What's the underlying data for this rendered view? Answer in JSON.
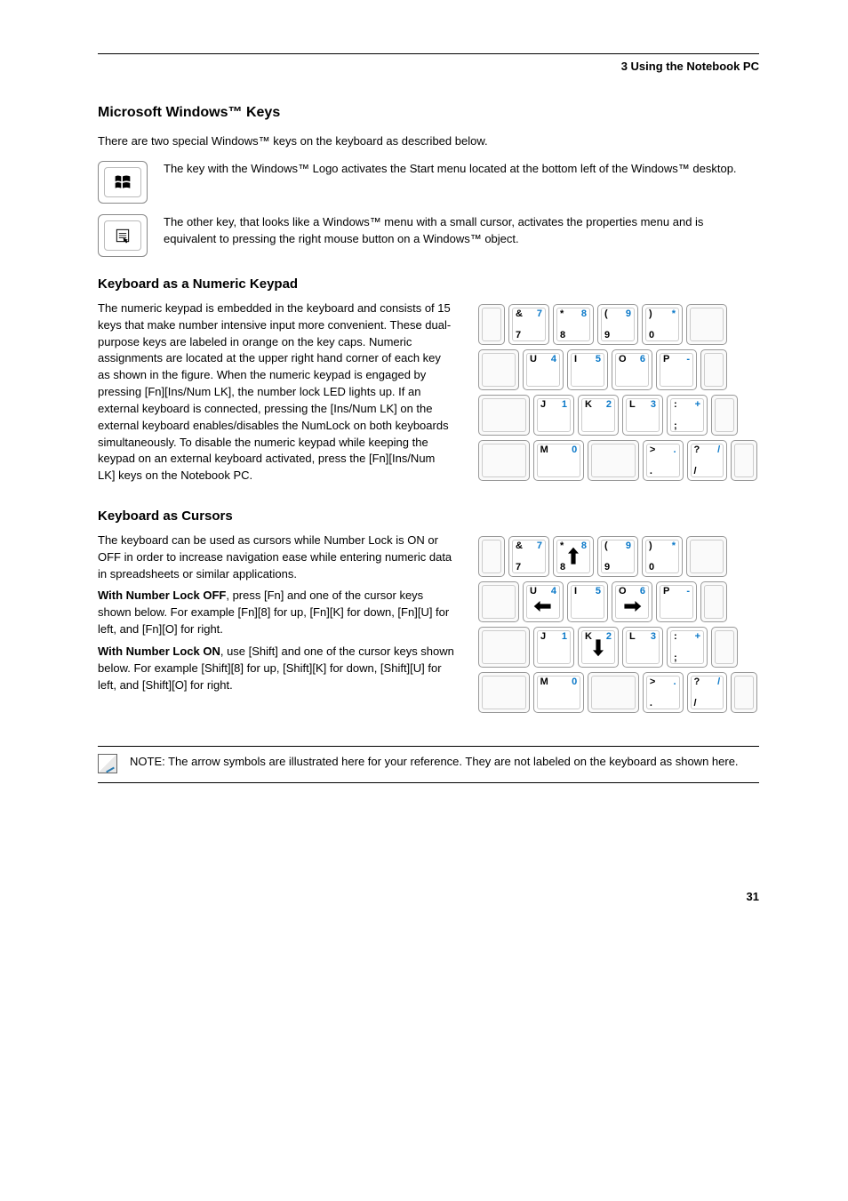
{
  "colors": {
    "accent": "#0a78c8",
    "text": "#000000",
    "rule": "#000000",
    "key_border": "#999999",
    "key_inner": "#cccccc"
  },
  "header": {
    "left": "",
    "right": "3    Using the Notebook PC"
  },
  "sections": {
    "winkeys_title": "Microsoft Windows™ Keys",
    "winkeys_intro": "There are two special Windows™ keys on the keyboard as described below.",
    "winlogo_desc": "The key with the Windows™ Logo activates the Start menu located at the bottom left of the Windows™ desktop.",
    "winmenu_desc": "The other key, that looks like a Windows™ menu with a small cursor, activates the properties menu and is equivalent to pressing the right mouse button on a Windows™ object.",
    "numpad_title": "Keyboard as a Numeric Keypad",
    "numpad_text": "The numeric keypad is embedded in the keyboard and consists of 15 keys that make number intensive input more convenient. These dual-purpose keys are labeled in orange on the key caps. Numeric assignments are located at the upper right hand corner of each key as shown in the figure. When the numeric keypad is engaged by pressing [Fn][Ins/Num LK], the number lock LED lights up. If an external keyboard is connected, pressing the [Ins/Num LK] on the external keyboard enables/disables the NumLock on both keyboards simultaneously. To disable the numeric keypad while keeping the keypad on an external keyboard activated, press the [Fn][Ins/Num LK] keys on the Notebook PC.",
    "cursors_title": "Keyboard as Cursors",
    "cursors_text": "The keyboard can be used as cursors while Number Lock is ON or OFF in order to increase navigation ease while entering numeric data in spreadsheets or similar applications.",
    "cursors_on": "With Number Lock OFF, press [Fn] and one of the cursor keys shown below. For example [Fn][8] for up, [Fn][K] for down, [Fn][U] for left, and [Fn][O] for right.",
    "cursors_off": "With Number Lock ON, use [Shift] and one of the cursor keys shown below. For example [Shift][8] for up, [Shift][K] for down, [Shift][U] for left, and [Shift][O] for right.",
    "note": "NOTE: The arrow symbols are illustrated here for your reference. They are not labeled on the keyboard as shown here."
  },
  "kbd_numpad": {
    "row1": [
      {
        "blank": true,
        "w": "w-off"
      },
      {
        "tl": "&",
        "tr": "7",
        "bl": "7",
        "blue_tr": true
      },
      {
        "tl": "*",
        "tr": "8",
        "bl": "8",
        "blue_tr": true
      },
      {
        "tl": "(",
        "tr": "9",
        "bl": "9",
        "blue_tr": true
      },
      {
        "tl": ")",
        "tr": "*",
        "bl": "0",
        "blue_tr": true
      },
      {
        "blank": true,
        "w": "w-std"
      }
    ],
    "row2": [
      {
        "blank": true,
        "w": "w-std"
      },
      {
        "tl": "U",
        "tr": "4",
        "blue_tr": true
      },
      {
        "tl": "I",
        "tr": "5",
        "blue_tr": true
      },
      {
        "tl": "O",
        "tr": "6",
        "blue_tr": true
      },
      {
        "tl": "P",
        "tr": "-",
        "blue_tr": true
      },
      {
        "blank": true,
        "w": "w-off"
      }
    ],
    "row3": [
      {
        "blank": true,
        "w": "w-wide"
      },
      {
        "tl": "J",
        "tr": "1",
        "blue_tr": true
      },
      {
        "tl": "K",
        "tr": "2",
        "blue_tr": true
      },
      {
        "tl": "L",
        "tr": "3",
        "blue_tr": true
      },
      {
        "tl": ":",
        "tr": "+",
        "bl": ";",
        "blue_tr": true
      },
      {
        "blank": true,
        "w": "w-off"
      }
    ],
    "row4": [
      {
        "blank": true,
        "w": "w-wide"
      },
      {
        "tl": "M",
        "tr": "0",
        "blue_tr": true,
        "w": "w-wide"
      },
      {
        "blank": true,
        "w": "w-wide"
      },
      {
        "tl": ">",
        "tr": ".",
        "bl": ".",
        "blue_tr": true
      },
      {
        "tl": "?",
        "tr": "/",
        "bl": "/",
        "blue_tr": true
      },
      {
        "blank": true,
        "w": "w-off"
      }
    ]
  },
  "kbd_cursors": {
    "row1": [
      {
        "blank": true,
        "w": "w-off"
      },
      {
        "tl": "&",
        "tr": "7",
        "bl": "7",
        "blue_tr": true
      },
      {
        "tl": "*",
        "tr": "8",
        "bl": "8",
        "blue_tr": true,
        "arrow": "up"
      },
      {
        "tl": "(",
        "tr": "9",
        "bl": "9",
        "blue_tr": true
      },
      {
        "tl": ")",
        "tr": "*",
        "bl": "0",
        "blue_tr": true
      },
      {
        "blank": true,
        "w": "w-std"
      }
    ],
    "row2": [
      {
        "blank": true,
        "w": "w-std"
      },
      {
        "tl": "U",
        "tr": "4",
        "blue_tr": true,
        "arrow": "left"
      },
      {
        "tl": "I",
        "tr": "5",
        "blue_tr": true
      },
      {
        "tl": "O",
        "tr": "6",
        "blue_tr": true,
        "arrow": "right"
      },
      {
        "tl": "P",
        "tr": "-",
        "blue_tr": true
      },
      {
        "blank": true,
        "w": "w-off"
      }
    ],
    "row3": [
      {
        "blank": true,
        "w": "w-wide"
      },
      {
        "tl": "J",
        "tr": "1",
        "blue_tr": true
      },
      {
        "tl": "K",
        "tr": "2",
        "blue_tr": true,
        "arrow": "down"
      },
      {
        "tl": "L",
        "tr": "3",
        "blue_tr": true
      },
      {
        "tl": ":",
        "tr": "+",
        "bl": ";",
        "blue_tr": true
      },
      {
        "blank": true,
        "w": "w-off"
      }
    ],
    "row4": [
      {
        "blank": true,
        "w": "w-wide"
      },
      {
        "tl": "M",
        "tr": "0",
        "blue_tr": true,
        "w": "w-wide"
      },
      {
        "blank": true,
        "w": "w-wide"
      },
      {
        "tl": ">",
        "tr": ".",
        "bl": ".",
        "blue_tr": true
      },
      {
        "tl": "?",
        "tr": "/",
        "bl": "/",
        "blue_tr": true
      },
      {
        "blank": true,
        "w": "w-off"
      }
    ]
  },
  "page_number": "31"
}
